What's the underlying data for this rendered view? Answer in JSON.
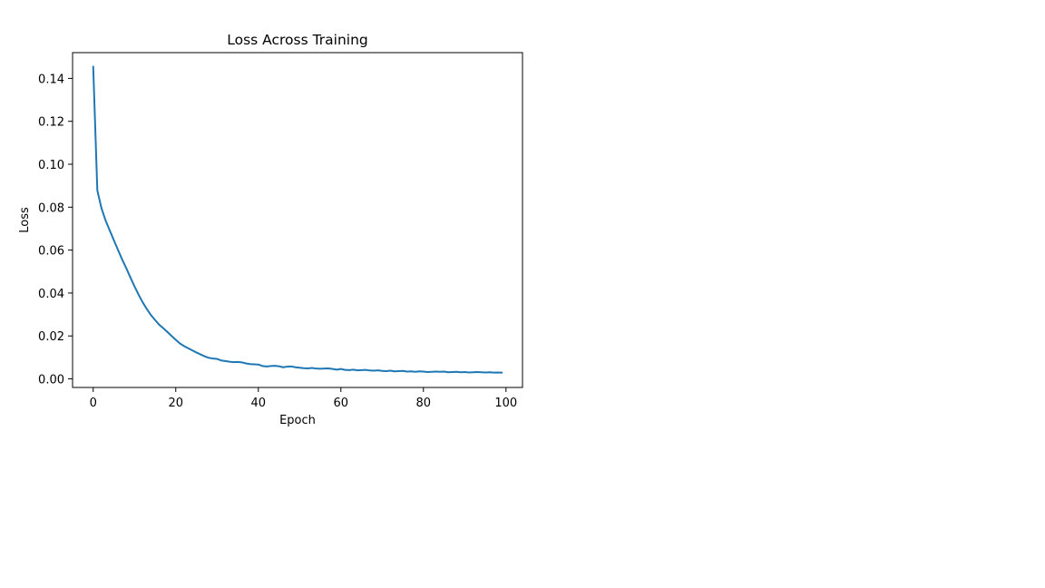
{
  "chart_data": {
    "type": "line",
    "title": "Loss Across Training",
    "xlabel": "Epoch",
    "ylabel": "Loss",
    "xlim": [
      -5,
      104
    ],
    "ylim": [
      -0.004,
      0.152
    ],
    "xticks": [
      0,
      20,
      40,
      60,
      80,
      100
    ],
    "yticks": [
      0.0,
      0.02,
      0.04,
      0.06,
      0.08,
      0.1,
      0.12,
      0.14
    ],
    "xtick_labels": [
      "0",
      "20",
      "40",
      "60",
      "80",
      "100"
    ],
    "ytick_labels": [
      "0.00",
      "0.02",
      "0.04",
      "0.06",
      "0.08",
      "0.10",
      "0.12",
      "0.14"
    ],
    "grid": false,
    "legend": null,
    "series": [
      {
        "color": "#1f77b4",
        "x": [
          0,
          1,
          2,
          3,
          4,
          5,
          6,
          7,
          8,
          9,
          10,
          11,
          12,
          13,
          14,
          15,
          16,
          17,
          18,
          19,
          20,
          21,
          22,
          23,
          24,
          25,
          26,
          27,
          28,
          29,
          30,
          31,
          32,
          33,
          34,
          35,
          36,
          37,
          38,
          39,
          40,
          41,
          42,
          43,
          44,
          45,
          46,
          47,
          48,
          49,
          50,
          51,
          52,
          53,
          54,
          55,
          56,
          57,
          58,
          59,
          60,
          61,
          62,
          63,
          64,
          65,
          66,
          67,
          68,
          69,
          70,
          71,
          72,
          73,
          74,
          75,
          76,
          77,
          78,
          79,
          80,
          81,
          82,
          83,
          84,
          85,
          86,
          87,
          88,
          89,
          90,
          91,
          92,
          93,
          94,
          95,
          96,
          97,
          98,
          99
        ],
        "y": [
          0.1455,
          0.0878,
          0.0795,
          0.0738,
          0.0692,
          0.0646,
          0.0601,
          0.0557,
          0.0516,
          0.0473,
          0.0431,
          0.0392,
          0.0356,
          0.0325,
          0.0297,
          0.0274,
          0.0252,
          0.0236,
          0.0218,
          0.02,
          0.0182,
          0.0165,
          0.0153,
          0.0143,
          0.0133,
          0.0123,
          0.0114,
          0.0105,
          0.0098,
          0.0095,
          0.0093,
          0.0086,
          0.0083,
          0.008,
          0.0078,
          0.0079,
          0.0077,
          0.0072,
          0.0069,
          0.0068,
          0.0067,
          0.006,
          0.0058,
          0.006,
          0.0061,
          0.0059,
          0.0054,
          0.0057,
          0.0058,
          0.0054,
          0.0052,
          0.005,
          0.0049,
          0.0051,
          0.0048,
          0.0047,
          0.0048,
          0.0049,
          0.0046,
          0.0043,
          0.0046,
          0.0042,
          0.0041,
          0.0043,
          0.004,
          0.0041,
          0.0042,
          0.0039,
          0.0038,
          0.004,
          0.0037,
          0.0036,
          0.0038,
          0.0035,
          0.0036,
          0.0037,
          0.0034,
          0.0035,
          0.0033,
          0.0035,
          0.0034,
          0.0032,
          0.0033,
          0.0034,
          0.0033,
          0.0034,
          0.0031,
          0.0032,
          0.0033,
          0.0031,
          0.0032,
          0.003,
          0.0031,
          0.0032,
          0.0031,
          0.003,
          0.0031,
          0.0029,
          0.003,
          0.0029
        ]
      }
    ]
  }
}
